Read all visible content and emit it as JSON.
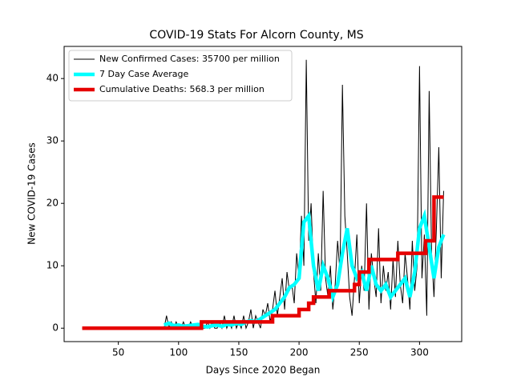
{
  "chart_data": {
    "type": "line",
    "title": "COVID-19 Stats For Alcorn County, MS",
    "xlabel": "Days Since 2020 Began",
    "ylabel": "New COVID-19 Cases",
    "xlim": [
      5,
      335
    ],
    "ylim": [
      -2.15,
      45.15
    ],
    "xticks": [
      50,
      100,
      150,
      200,
      250,
      300
    ],
    "yticks": [
      0,
      10,
      20,
      30,
      40
    ],
    "legend": "upper left",
    "series": [
      {
        "name": "New Confirmed Cases: 35700 per million",
        "color": "black",
        "x": [
          20,
          88,
          90,
          92,
          94,
          96,
          98,
          100,
          102,
          104,
          106,
          108,
          110,
          112,
          114,
          116,
          118,
          120,
          122,
          124,
          126,
          128,
          130,
          132,
          134,
          136,
          138,
          140,
          142,
          144,
          146,
          148,
          150,
          152,
          154,
          156,
          158,
          160,
          162,
          164,
          166,
          168,
          170,
          172,
          174,
          176,
          178,
          180,
          182,
          184,
          186,
          188,
          190,
          192,
          194,
          196,
          198,
          200,
          202,
          204,
          206,
          208,
          210,
          212,
          214,
          216,
          218,
          220,
          222,
          224,
          226,
          228,
          230,
          232,
          234,
          236,
          238,
          240,
          242,
          244,
          246,
          248,
          250,
          252,
          254,
          256,
          258,
          260,
          262,
          264,
          266,
          268,
          270,
          272,
          274,
          276,
          278,
          280,
          282,
          284,
          286,
          288,
          290,
          292,
          294,
          296,
          298,
          300,
          302,
          304,
          306,
          308,
          310,
          312,
          314,
          316,
          318,
          320
        ],
        "values": [
          0,
          0,
          2,
          0,
          1,
          0,
          1,
          0,
          0,
          1,
          0,
          0,
          1,
          0,
          0,
          0,
          1,
          0,
          0,
          1,
          0,
          1,
          0,
          0,
          1,
          0,
          2,
          0,
          1,
          0,
          2,
          0,
          1,
          0,
          2,
          0,
          1,
          3,
          0,
          2,
          1,
          0,
          3,
          2,
          4,
          1,
          3,
          6,
          2,
          5,
          8,
          3,
          9,
          6,
          7,
          4,
          12,
          8,
          18,
          10,
          43,
          14,
          20,
          9,
          4,
          12,
          6,
          22,
          8,
          5,
          10,
          3,
          7,
          14,
          9,
          39,
          18,
          12,
          5,
          2,
          8,
          15,
          4,
          10,
          6,
          20,
          3,
          12,
          8,
          5,
          16,
          4,
          10,
          6,
          9,
          3,
          11,
          5,
          14,
          7,
          4,
          12,
          8,
          3,
          14,
          6,
          10,
          42,
          8,
          15,
          2,
          38,
          12,
          5,
          16,
          29,
          8,
          22
        ]
      },
      {
        "name": "7 Day Case Average",
        "color": "cyan",
        "x": [
          88,
          92,
          96,
          100,
          104,
          108,
          112,
          116,
          120,
          124,
          128,
          132,
          136,
          140,
          144,
          148,
          152,
          156,
          160,
          164,
          168,
          172,
          176,
          180,
          184,
          188,
          192,
          196,
          200,
          204,
          208,
          212,
          216,
          220,
          224,
          228,
          232,
          236,
          240,
          244,
          248,
          252,
          256,
          260,
          264,
          268,
          272,
          276,
          280,
          284,
          288,
          292,
          296,
          300,
          304,
          308,
          312,
          316,
          320
        ],
        "values": [
          0.5,
          0.8,
          0.4,
          0.5,
          0.3,
          0.4,
          0.5,
          0.6,
          0.3,
          0.2,
          0.4,
          0.5,
          0.3,
          0.6,
          0.5,
          0.8,
          0.6,
          1,
          1.2,
          1,
          1.5,
          2,
          2.5,
          3,
          4,
          5,
          6.5,
          7,
          8,
          17,
          18,
          10,
          6,
          10,
          8,
          5,
          7,
          12,
          16,
          10,
          8,
          9,
          6,
          10,
          7,
          6,
          7,
          5,
          6,
          7,
          8,
          5,
          9,
          16,
          18,
          13,
          8,
          13,
          15
        ]
      },
      {
        "name": "Cumulative Deaths: 568.3 per million",
        "color": "#e60000",
        "x": [
          20,
          119,
          119,
          178,
          178,
          200,
          200,
          208,
          208,
          212,
          212,
          225,
          225,
          246,
          246,
          250,
          250,
          258,
          258,
          282,
          282,
          305,
          305,
          312,
          312,
          320
        ],
        "values": [
          0,
          0,
          1,
          1,
          2,
          2,
          3,
          3,
          4,
          4,
          5,
          5,
          6,
          6,
          7,
          7,
          9,
          9,
          11,
          11,
          12,
          12,
          14,
          14,
          21,
          21
        ]
      }
    ]
  }
}
